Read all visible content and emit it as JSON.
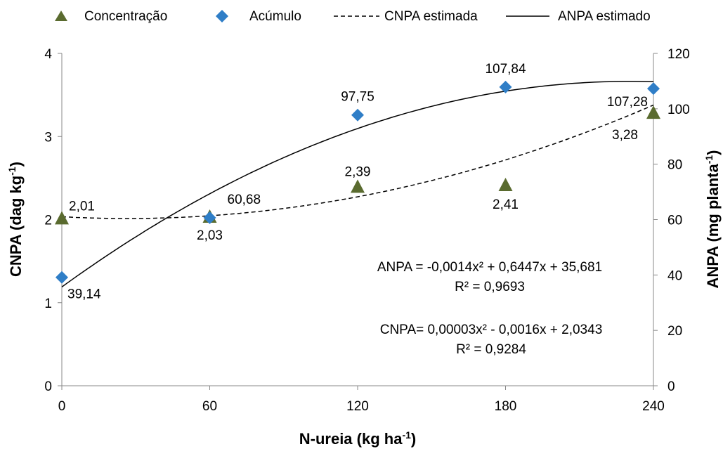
{
  "chart_data": {
    "type": "scatter",
    "xlabel": "N-ureia (kg ha",
    "xlabel_sup": "-1",
    "xlabel_end": ")",
    "ylabel_left": "CNPA (dag kg",
    "ylabel_left_sup": "-1",
    "ylabel_left_end": ")",
    "ylabel_right": "ANPA (mg planta",
    "ylabel_right_sup": "-1",
    "ylabel_right_end": ")",
    "x_ticks": [
      "0",
      "60",
      "120",
      "180",
      "240"
    ],
    "y_left_ticks": [
      "0",
      "1",
      "2",
      "3",
      "4"
    ],
    "y_right_ticks": [
      "0",
      "20",
      "40",
      "60",
      "80",
      "100",
      "120"
    ],
    "xlim": [
      0,
      240
    ],
    "ylim_left": [
      0,
      4
    ],
    "ylim_right": [
      0,
      120
    ],
    "grid": false,
    "legend_position": "top",
    "legend": {
      "concentracao": "Concentração",
      "acumulo": "Acúmulo",
      "cnpa_est": "CNPA estimada",
      "anpa_est": "ANPA estimado"
    },
    "series": [
      {
        "name": "Concentração",
        "axis": "left",
        "marker": "triangle",
        "color": "#5a6b2f",
        "x": [
          0,
          60,
          120,
          180,
          240
        ],
        "values": [
          2.01,
          2.03,
          2.39,
          2.41,
          3.28
        ],
        "labels": [
          "2,01",
          "2,03",
          "2,39",
          "2,41",
          "3,28"
        ]
      },
      {
        "name": "Acúmulo",
        "axis": "right",
        "marker": "diamond",
        "color": "#2f7ec7",
        "x": [
          0,
          60,
          120,
          180,
          240
        ],
        "values": [
          39.14,
          60.68,
          97.75,
          107.84,
          107.28
        ],
        "labels": [
          "39,14",
          "60,68",
          "97,75",
          "107,84",
          "107,28"
        ]
      }
    ],
    "fits": {
      "anpa": {
        "a": -0.0014,
        "b": 0.6447,
        "c": 35.681
      },
      "cnpa": {
        "a": 3e-05,
        "b": -0.0016,
        "c": 2.0343
      }
    },
    "equations": {
      "anpa_eq": "ANPA = -0,0014x² + 0,6447x + 35,681",
      "anpa_r2": "R² = 0,9693",
      "cnpa_eq": "CNPA= 0,00003x² - 0,0016x + 2,0343",
      "cnpa_r2": "R² = 0,9284"
    }
  }
}
